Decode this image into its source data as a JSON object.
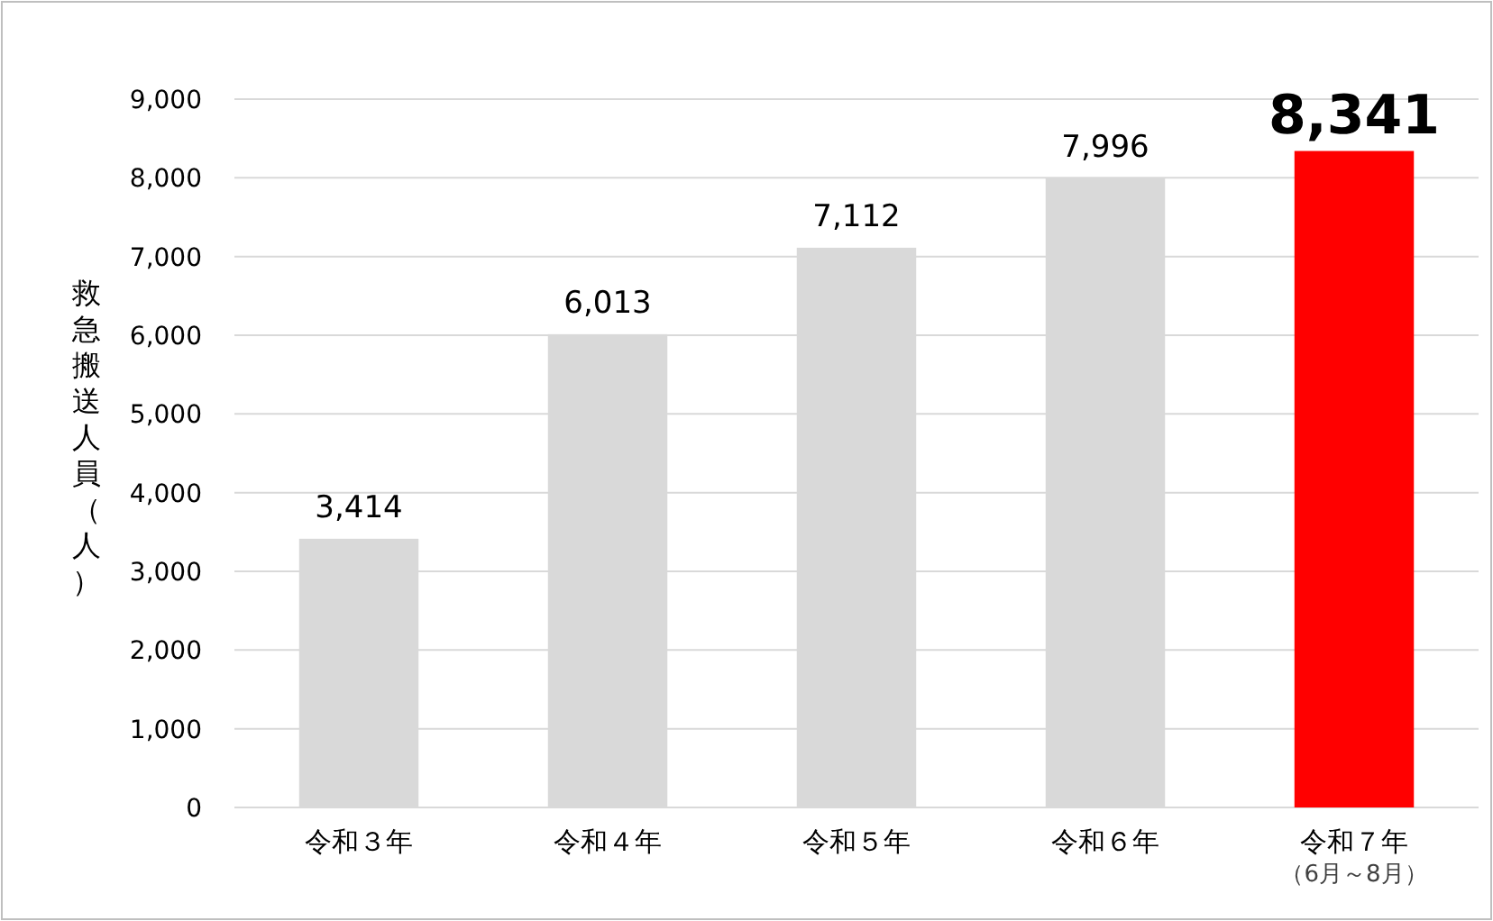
{
  "chart_data": {
    "type": "bar",
    "ylabel": "救急搬送人員（人）",
    "categories": [
      "令和３年",
      "令和４年",
      "令和５年",
      "令和６年",
      "令和７年"
    ],
    "annotations": [
      "（6月～8月）"
    ],
    "values": [
      3414,
      6013,
      7112,
      7996,
      8341
    ],
    "value_labels": [
      "3,414",
      "6,013",
      "7,112",
      "7,996",
      "8,341"
    ],
    "colors": [
      "#d9d9d9",
      "#d9d9d9",
      "#d9d9d9",
      "#d9d9d9",
      "#ff0000"
    ],
    "ylim": [
      0,
      9000
    ],
    "yticks": [
      {
        "value": 0,
        "label": "0"
      },
      {
        "value": 1000,
        "label": "1,000"
      },
      {
        "value": 2000,
        "label": "2,000"
      },
      {
        "value": 3000,
        "label": "3,000"
      },
      {
        "value": 4000,
        "label": "4,000"
      },
      {
        "value": 5000,
        "label": "5,000"
      },
      {
        "value": 6000,
        "label": "6,000"
      },
      {
        "value": 7000,
        "label": "7,000"
      },
      {
        "value": 8000,
        "label": "8,000"
      },
      {
        "value": 9000,
        "label": "9,000"
      }
    ],
    "grid": "y"
  }
}
